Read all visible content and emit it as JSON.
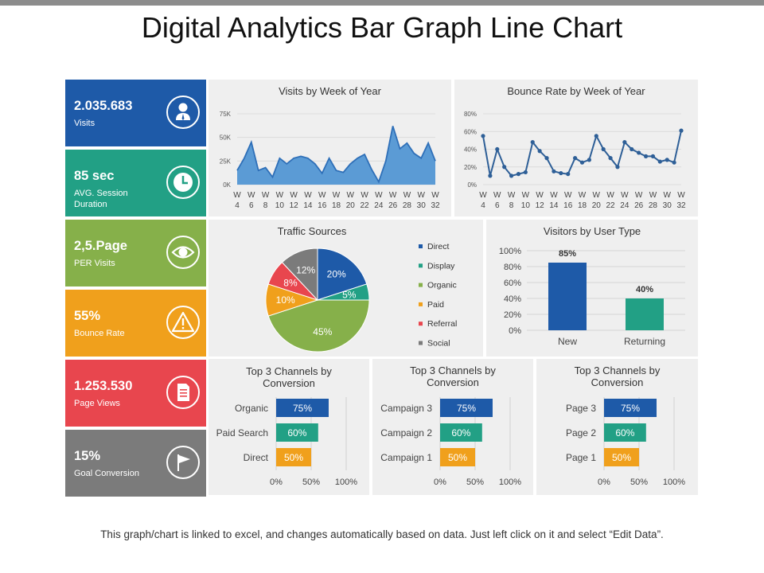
{
  "page": {
    "title": "Digital Analytics Bar Graph Line Chart",
    "footer": "This graph/chart is linked to excel, and changes automatically based on data. Just left click on it and select “Edit Data”."
  },
  "kpis": [
    {
      "value": "2.035.683",
      "label": "Visits",
      "icon": "user-icon",
      "color": "#1e5aa8"
    },
    {
      "value": "85 sec",
      "label": "AVG. Session Duration",
      "icon": "clock-icon",
      "color": "#22a085"
    },
    {
      "value": "2,5.Page",
      "label": "PER Visits",
      "icon": "eye-icon",
      "color": "#86b04a"
    },
    {
      "value": "55%",
      "label": "Bounce Rate",
      "icon": "warning-icon",
      "color": "#f0a01c"
    },
    {
      "value": "1.253.530",
      "label": "Page Views",
      "icon": "document-icon",
      "color": "#e8464e"
    },
    {
      "value": "15%",
      "label": "Goal Conversion",
      "icon": "flag-icon",
      "color": "#7b7b7b"
    }
  ],
  "chart_data": [
    {
      "type": "area",
      "title": "Visits by Week of Year",
      "ylabel_ticks": [
        "0K",
        "25K",
        "50K",
        "75K"
      ],
      "ylim": [
        0,
        75000
      ],
      "x_tick_labels": [
        "W 4",
        "W 6",
        "W 8",
        "W 10",
        "W 12",
        "W 14",
        "W 16",
        "W 18",
        "W 20",
        "W 22",
        "W 24",
        "W 26",
        "W 28",
        "W 30",
        "W 32"
      ],
      "values": [
        15000,
        28000,
        45000,
        15000,
        18000,
        8000,
        28000,
        22000,
        28000,
        30000,
        28000,
        22000,
        12000,
        28000,
        15000,
        13000,
        22000,
        28000,
        32000,
        16000,
        3000,
        25000,
        62000,
        38000,
        44000,
        33000,
        28000,
        44000,
        25000
      ],
      "color": "#5b9bd5",
      "line_color": "#2e6fb8"
    },
    {
      "type": "line",
      "title": "Bounce Rate by Week of Year",
      "ylabel_ticks": [
        "0%",
        "20%",
        "40%",
        "60%",
        "80%"
      ],
      "ylim": [
        0,
        80
      ],
      "x_tick_labels": [
        "W 4",
        "W 6",
        "W 8",
        "W 10",
        "W 12",
        "W 14",
        "W 16",
        "W 18",
        "W 20",
        "W 22",
        "W 24",
        "W 26",
        "W 28",
        "W 30",
        "W 32"
      ],
      "values": [
        55,
        10,
        40,
        20,
        10,
        12,
        14,
        48,
        38,
        30,
        15,
        13,
        12,
        30,
        25,
        28,
        55,
        40,
        30,
        20,
        48,
        40,
        36,
        32,
        32,
        26,
        28,
        25,
        61
      ],
      "color": "#2e5f97"
    },
    {
      "type": "pie",
      "title": "Traffic Sources",
      "categories": [
        "Direct",
        "Display",
        "Organic",
        "Paid",
        "Referral",
        "Social"
      ],
      "values": [
        20,
        5,
        45,
        10,
        8,
        12
      ],
      "labels": [
        "20%",
        "5%",
        "45%",
        "10%",
        "8%",
        "12%"
      ],
      "colors": [
        "#1e5aa8",
        "#22a085",
        "#86b04a",
        "#f0a01c",
        "#e8464e",
        "#7b7b7b"
      ],
      "legend": "right"
    },
    {
      "type": "bar",
      "title": "Visitors by User Type",
      "categories": [
        "New",
        "Returning"
      ],
      "values": [
        85,
        40
      ],
      "labels": [
        "85%",
        "40%"
      ],
      "colors": [
        "#1e5aa8",
        "#22a085"
      ],
      "ylim": [
        0,
        100
      ],
      "y_ticks": [
        "0%",
        "20%",
        "40%",
        "60%",
        "80%",
        "100%"
      ]
    },
    {
      "type": "bar",
      "orientation": "horizontal",
      "title": "Top 3 Channels by Conversion",
      "categories": [
        "Organic",
        "Paid Search",
        "Direct"
      ],
      "values": [
        75,
        60,
        50
      ],
      "labels": [
        "75%",
        "60%",
        "50%"
      ],
      "colors": [
        "#1e5aa8",
        "#22a085",
        "#f0a01c"
      ],
      "x_ticks": [
        "0%",
        "50%",
        "100%"
      ],
      "xlim": [
        0,
        100
      ]
    },
    {
      "type": "bar",
      "orientation": "horizontal",
      "title": "Top 3 Channels by Conversion",
      "categories": [
        "Campaign 3",
        "Campaign 2",
        "Campaign 1"
      ],
      "values": [
        75,
        60,
        50
      ],
      "labels": [
        "75%",
        "60%",
        "50%"
      ],
      "colors": [
        "#1e5aa8",
        "#22a085",
        "#f0a01c"
      ],
      "x_ticks": [
        "0%",
        "50%",
        "100%"
      ],
      "xlim": [
        0,
        100
      ]
    },
    {
      "type": "bar",
      "orientation": "horizontal",
      "title": "Top 3 Channels by Conversion",
      "categories": [
        "Page 3",
        "Page 2",
        "Page 1"
      ],
      "values": [
        75,
        60,
        50
      ],
      "labels": [
        "75%",
        "60%",
        "50%"
      ],
      "colors": [
        "#1e5aa8",
        "#22a085",
        "#f0a01c"
      ],
      "x_ticks": [
        "0%",
        "50%",
        "100%"
      ],
      "xlim": [
        0,
        100
      ]
    }
  ]
}
